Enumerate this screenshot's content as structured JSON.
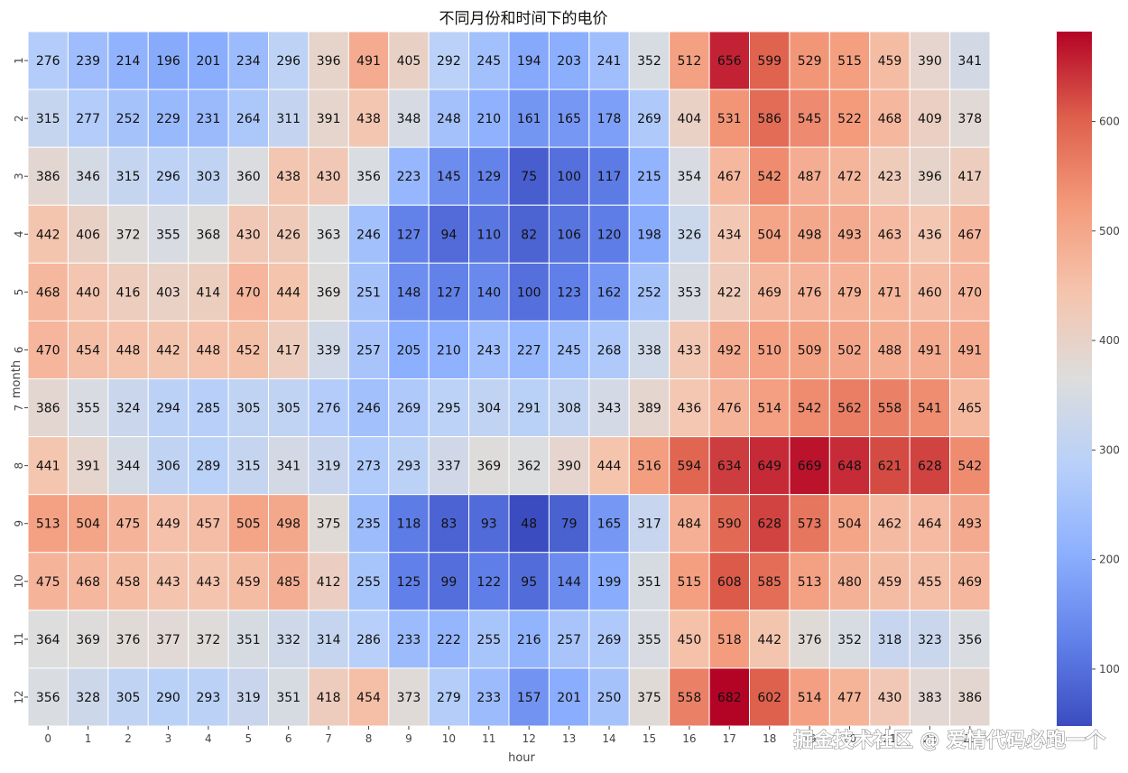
{
  "chart_data": {
    "type": "heatmap",
    "title": "不同月份和时间下的电价",
    "xlabel": "hour",
    "ylabel": "month",
    "x": [
      "0",
      "1",
      "2",
      "3",
      "4",
      "5",
      "6",
      "7",
      "8",
      "9",
      "10",
      "11",
      "12",
      "13",
      "14",
      "15",
      "16",
      "17",
      "18",
      "19",
      "20",
      "21",
      "22",
      "23"
    ],
    "y": [
      "1",
      "2",
      "3",
      "4",
      "5",
      "6",
      "7",
      "8",
      "9",
      "10",
      "11",
      "12"
    ],
    "values": [
      [
        276,
        239,
        214,
        196,
        201,
        234,
        296,
        396,
        491,
        405,
        292,
        245,
        194,
        203,
        241,
        352,
        512,
        656,
        599,
        529,
        515,
        459,
        390,
        341
      ],
      [
        315,
        277,
        252,
        229,
        231,
        264,
        311,
        391,
        438,
        348,
        248,
        210,
        161,
        165,
        178,
        269,
        404,
        531,
        586,
        545,
        522,
        468,
        409,
        378
      ],
      [
        386,
        346,
        315,
        296,
        303,
        360,
        438,
        430,
        356,
        223,
        145,
        129,
        75,
        100,
        117,
        215,
        354,
        467,
        542,
        487,
        472,
        423,
        396,
        417
      ],
      [
        442,
        406,
        372,
        355,
        368,
        430,
        426,
        363,
        246,
        127,
        94,
        110,
        82,
        106,
        120,
        198,
        326,
        434,
        504,
        498,
        493,
        463,
        436,
        467
      ],
      [
        468,
        440,
        416,
        403,
        414,
        470,
        444,
        369,
        251,
        148,
        127,
        140,
        100,
        123,
        162,
        252,
        353,
        422,
        469,
        476,
        479,
        471,
        460,
        470
      ],
      [
        470,
        454,
        448,
        442,
        448,
        452,
        417,
        339,
        257,
        205,
        210,
        243,
        227,
        245,
        268,
        338,
        433,
        492,
        510,
        509,
        502,
        488,
        491,
        491
      ],
      [
        386,
        355,
        324,
        294,
        285,
        305,
        305,
        276,
        246,
        269,
        295,
        304,
        291,
        308,
        343,
        389,
        436,
        476,
        514,
        542,
        562,
        558,
        541,
        465
      ],
      [
        441,
        391,
        344,
        306,
        289,
        315,
        341,
        319,
        273,
        293,
        337,
        369,
        362,
        390,
        444,
        516,
        594,
        634,
        649,
        669,
        648,
        621,
        628,
        542
      ],
      [
        513,
        504,
        475,
        449,
        457,
        505,
        498,
        375,
        235,
        118,
        83,
        93,
        48,
        79,
        165,
        317,
        484,
        590,
        628,
        573,
        504,
        462,
        464,
        493
      ],
      [
        475,
        468,
        458,
        443,
        443,
        459,
        485,
        412,
        255,
        125,
        99,
        122,
        95,
        144,
        199,
        351,
        515,
        608,
        585,
        513,
        480,
        459,
        455,
        469
      ],
      [
        364,
        369,
        376,
        377,
        372,
        351,
        332,
        314,
        286,
        233,
        222,
        255,
        216,
        257,
        269,
        355,
        450,
        518,
        442,
        376,
        352,
        318,
        323,
        356
      ],
      [
        356,
        328,
        305,
        290,
        293,
        319,
        351,
        418,
        454,
        373,
        279,
        233,
        157,
        201,
        250,
        375,
        558,
        682,
        602,
        514,
        477,
        430,
        383,
        386
      ]
    ],
    "colormap": "coolwarm",
    "vmin": 48,
    "vmax": 682,
    "colorbar_ticks": [
      100,
      200,
      300,
      400,
      500,
      600
    ],
    "annotations": "cell values shown",
    "grid": false,
    "legend": "colorbar-right"
  },
  "watermark": "掘金技术社区 @ 爱情代码必跑一个"
}
